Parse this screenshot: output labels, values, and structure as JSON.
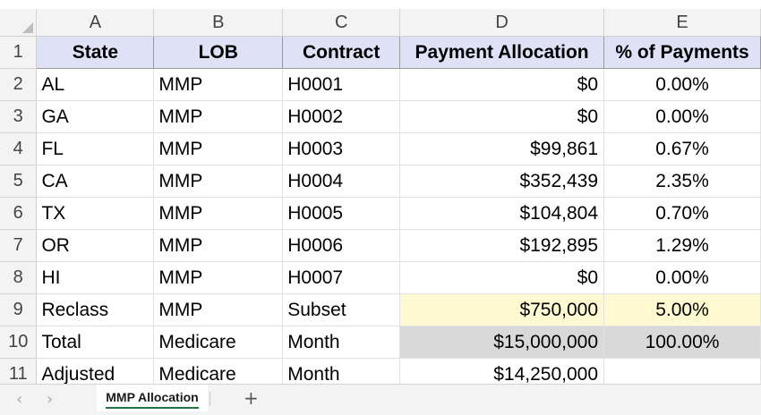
{
  "columns": [
    "A",
    "B",
    "C",
    "D",
    "E"
  ],
  "header": {
    "row": "1",
    "state": "State",
    "lob": "LOB",
    "contract": "Contract",
    "payment": "Payment Allocation",
    "pct": "% of Payments"
  },
  "rows": [
    {
      "row": "2",
      "state": "AL",
      "lob": "MMP",
      "contract": "H0001",
      "payment": "$0",
      "pct": "0.00%"
    },
    {
      "row": "3",
      "state": "GA",
      "lob": "MMP",
      "contract": "H0002",
      "payment": "$0",
      "pct": "0.00%"
    },
    {
      "row": "4",
      "state": "FL",
      "lob": "MMP",
      "contract": "H0003",
      "payment": "$99,861",
      "pct": "0.67%"
    },
    {
      "row": "5",
      "state": "CA",
      "lob": "MMP",
      "contract": "H0004",
      "payment": "$352,439",
      "pct": "2.35%"
    },
    {
      "row": "6",
      "state": "TX",
      "lob": "MMP",
      "contract": "H0005",
      "payment": "$104,804",
      "pct": "0.70%"
    },
    {
      "row": "7",
      "state": "OR",
      "lob": "MMP",
      "contract": "H0006",
      "payment": "$192,895",
      "pct": "1.29%"
    },
    {
      "row": "8",
      "state": "HI",
      "lob": "MMP",
      "contract": "H0007",
      "payment": "$0",
      "pct": "0.00%"
    },
    {
      "row": "9",
      "state": "Reclass",
      "lob": "MMP",
      "contract": "Subset",
      "payment": "$750,000",
      "pct": "5.00%"
    },
    {
      "row": "10",
      "state": "Total",
      "lob": "Medicare",
      "contract": "Month",
      "payment": "$15,000,000",
      "pct": "100.00%"
    },
    {
      "row": "11",
      "state": "Adjusted",
      "lob": "Medicare",
      "contract": "Month",
      "payment": "$14,250,000",
      "pct": ""
    }
  ],
  "sheet_tabs": {
    "prev": "‹",
    "next": "›",
    "active": "MMP Allocation",
    "add": "+"
  },
  "colors": {
    "header_fill": "#dfe1f7",
    "reclass_fill": "#fff9d1",
    "total_fill": "#d9d9d9",
    "tab_accent": "#217346"
  }
}
